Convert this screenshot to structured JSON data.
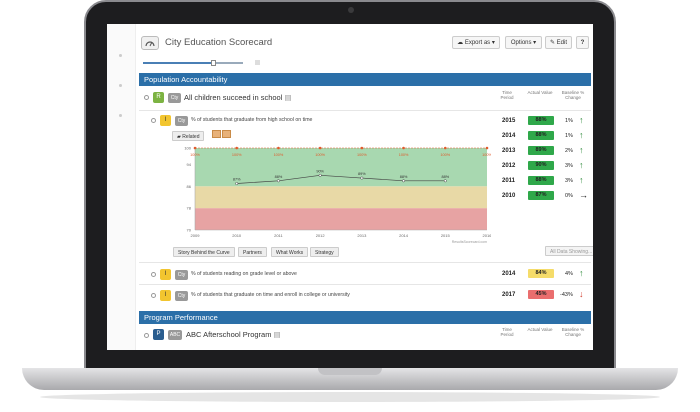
{
  "app": {
    "title": "City Education Scorecard",
    "buttons": {
      "export": "Export as",
      "options": "Options",
      "edit": "Edit",
      "help": "?"
    }
  },
  "sections": {
    "population": "Population Accountability",
    "program": "Program Performance"
  },
  "result": {
    "badge": "R",
    "tag": "Cty",
    "label": "All children succeed in school",
    "col_time": "Time Period",
    "col_actual": "Actual Value",
    "col_baseline": "Baseline % Change"
  },
  "indicator1": {
    "badge": "I",
    "tag": "Cty",
    "label": "% of students that graduate from high school on time",
    "related": "Related",
    "rows": [
      {
        "year": "2015",
        "value": "88%",
        "change": "1%",
        "dir": "up"
      },
      {
        "year": "2014",
        "value": "88%",
        "change": "1%",
        "dir": "up"
      },
      {
        "year": "2013",
        "value": "89%",
        "change": "2%",
        "dir": "up"
      },
      {
        "year": "2012",
        "value": "90%",
        "change": "3%",
        "dir": "up"
      },
      {
        "year": "2011",
        "value": "88%",
        "change": "3%",
        "dir": "up"
      },
      {
        "year": "2010",
        "value": "87%",
        "change": "0%",
        "dir": "right"
      }
    ],
    "tabs": [
      "Story Behind the Curve",
      "Partners",
      "What Works",
      "Strategy"
    ],
    "all_data": "All Data Showing...",
    "source": "ResultsScorecard.com"
  },
  "indicator2": {
    "badge": "I",
    "tag": "Cty",
    "label": "% of students reading on grade level or above",
    "year": "2014",
    "value": "84%",
    "change": "4%",
    "dir": "up"
  },
  "indicator3": {
    "badge": "I",
    "tag": "Cty",
    "label": "% of students that graduate on time and enroll in college or university",
    "year": "2017",
    "value": "45%",
    "change": "-43%",
    "dir": "down"
  },
  "program": {
    "badge": "P",
    "tag": "ABC",
    "label": "ABC Afterschool Program",
    "col_time": "Time Period",
    "col_actual": "Actual Value",
    "col_baseline": "Baseline % Change"
  },
  "chart_data": {
    "type": "line",
    "x": [
      "2009",
      "2010",
      "2011",
      "2012",
      "2013",
      "2014",
      "2015",
      "2016"
    ],
    "series": [
      {
        "values": [
          null,
          87,
          88,
          90,
          89,
          88,
          88,
          null
        ],
        "labels": [
          "",
          "87%",
          "88%",
          "90%",
          "89%",
          "88%",
          "88%",
          ""
        ]
      },
      {
        "values": [
          100,
          100,
          100,
          100,
          100,
          100,
          100,
          100
        ],
        "labels": [
          "100%",
          "100%",
          "100%",
          "100%",
          "100%",
          "100%",
          "100%",
          "100%"
        ]
      }
    ],
    "yticks": [
      "100",
      "94",
      "86",
      "78",
      "70"
    ],
    "ylim": [
      70,
      100
    ],
    "bands": [
      {
        "from": 70,
        "to": 78,
        "color": "#e7a3a3"
      },
      {
        "from": 78,
        "to": 86,
        "color": "#e8d9a6"
      },
      {
        "from": 86,
        "to": 100,
        "color": "#a8d8b0"
      }
    ],
    "colors": {
      "target": "#e05a2b",
      "actual": "#444444"
    }
  }
}
